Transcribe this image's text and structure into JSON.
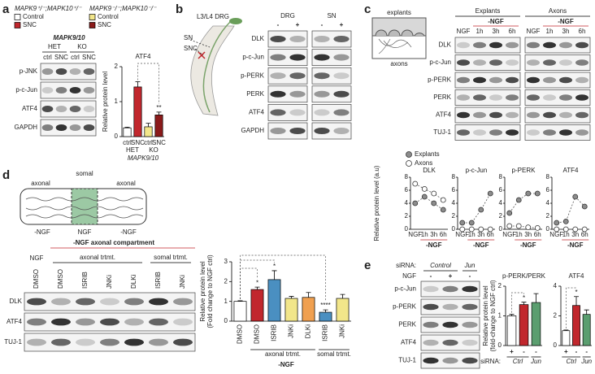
{
  "panel_labels": [
    "a",
    "b",
    "c",
    "d",
    "e"
  ],
  "panel_a": {
    "legend": [
      {
        "genotype": "MAPK9⁺/⁻;MAPK10⁺/⁻",
        "items": [
          {
            "label": "Control",
            "color": "#ffffff"
          },
          {
            "label": "SNC",
            "color": "#c1272d"
          }
        ]
      },
      {
        "genotype": "MAPK9⁻/⁻;MAPK10⁻/⁻",
        "items": [
          {
            "label": "Control",
            "color": "#f2e68a"
          },
          {
            "label": "SNC",
            "color": "#8b1a1a"
          }
        ]
      }
    ],
    "blot": {
      "title": "MAPK9/10",
      "groups": [
        "HET",
        "KO"
      ],
      "lanes": [
        "ctrl",
        "SNC",
        "ctrl",
        "SNC"
      ],
      "rows": [
        "p-JNK",
        "p-c-Jun",
        "ATF4",
        "GAPDH"
      ]
    }
  },
  "panel_b": {
    "labels": [
      "L3/L4 DRG",
      "SN",
      "SNC"
    ],
    "blots": [
      {
        "title": "DRG",
        "lanes": [
          "-",
          "+"
        ]
      },
      {
        "title": "SN",
        "lanes": [
          "-",
          "+"
        ]
      }
    ],
    "rows": [
      "DLK",
      "p-c-Jun",
      "p-PERK",
      "PERK",
      "ATF4",
      "GAPDH"
    ]
  },
  "panel_c": {
    "diagram": [
      "explants",
      "axons"
    ],
    "blots": [
      {
        "title": "Explants",
        "condition": "-NGF",
        "lanes": [
          "NGF",
          "1h",
          "3h",
          "6h"
        ]
      },
      {
        "title": "Axons",
        "condition": "-NGF",
        "lanes": [
          "NGF",
          "1h",
          "3h",
          "6h"
        ]
      }
    ],
    "rows": [
      "DLK",
      "p-c-Jun",
      "p-PERK",
      "PERK",
      "ATF4",
      "TUJ-1"
    ]
  },
  "panel_d": {
    "diagram": {
      "top": "somal",
      "sides": [
        "axonal",
        "axonal"
      ],
      "conditions": [
        "-NGF",
        "NGF",
        "-NGF"
      ]
    },
    "blot": {
      "title": "-NGF axonal compartment",
      "control": "NGF",
      "groups": [
        "axonal trtmt.",
        "somal trtmt."
      ],
      "lanes": [
        "DMSO",
        "DMSO",
        "ISRIB",
        "JNKi",
        "DLKi",
        "ISRIB",
        "JNKi"
      ],
      "rows": [
        "DLK",
        "ATF4",
        "TUJ-1"
      ]
    }
  },
  "panel_e": {
    "sirna_label": "siRNA:",
    "sirna": [
      "Control",
      "Jun"
    ],
    "ngf_label": "NGF",
    "lanes": [
      "-",
      "+",
      "-"
    ],
    "rows": [
      "p-c-Jun",
      "p-PERK",
      "PERK",
      "ATF4",
      "TUJ-1"
    ]
  },
  "chart_data": [
    {
      "type": "bar",
      "title": "ATF4",
      "y_label": [
        "Relative protein level"
      ],
      "categories": [
        "ctrl",
        "SNC",
        "ctrl",
        "SNC"
      ],
      "values": [
        0.25,
        1.42,
        0.28,
        0.62
      ],
      "errors": [
        0.02,
        0.15,
        0.1,
        0.08
      ],
      "annotations": [
        null,
        null,
        null,
        "**"
      ],
      "colors": [
        "#ffffff",
        "#c1272d",
        "#f2e68a",
        "#8b1a1a"
      ],
      "groups": [
        "HET",
        "KO"
      ],
      "x_label": "MAPK9/10",
      "ylim": [
        0,
        2
      ],
      "yticks": [
        0,
        1,
        2
      ]
    },
    {
      "type": "line",
      "title": "DLK",
      "y_label": "Relative protein level (a.u)",
      "categories": [
        "NGF",
        "1h",
        "3h",
        "6h"
      ],
      "x_label": "-NGF",
      "series": [
        {
          "name": "Explants",
          "color": "#8c8c8c",
          "values": [
            4,
            5,
            4,
            3
          ]
        },
        {
          "name": "Axons",
          "color": "#ffffff",
          "values": [
            7,
            6.2,
            5.5,
            4.5
          ]
        }
      ],
      "ylim": [
        0,
        8
      ],
      "yticks": [
        0,
        2,
        4,
        6,
        8
      ]
    },
    {
      "type": "line",
      "title": "p-c-Jun",
      "categories": [
        "NGF",
        "1h",
        "3h",
        "6h"
      ],
      "x_label": "-NGF",
      "series": [
        {
          "color": "#8c8c8c",
          "values": [
            1,
            1,
            3,
            5.5
          ]
        },
        {
          "color": "#ffffff",
          "values": [
            0,
            0,
            0,
            0
          ]
        }
      ],
      "ylim": [
        0,
        8
      ],
      "yticks": [
        0,
        2,
        4,
        6,
        8
      ]
    },
    {
      "type": "line",
      "title": "p-PERK",
      "categories": [
        "NGF",
        "1h",
        "3h",
        "6h"
      ],
      "x_label": "-NGF",
      "series": [
        {
          "color": "#8c8c8c",
          "values": [
            2.5,
            4.5,
            5.5,
            5.5
          ]
        },
        {
          "color": "#ffffff",
          "values": [
            0.5,
            0.5,
            0.3,
            0.2
          ]
        }
      ],
      "ylim": [
        0,
        8
      ],
      "yticks": [
        0,
        2,
        4,
        6,
        8
      ]
    },
    {
      "type": "line",
      "title": "ATF4",
      "categories": [
        "NGF",
        "1h",
        "3h",
        "6h"
      ],
      "x_label": "-NGF",
      "series": [
        {
          "color": "#8c8c8c",
          "values": [
            1,
            1.2,
            5,
            3.5
          ]
        },
        {
          "color": "#ffffff",
          "values": [
            0,
            0,
            0,
            0
          ]
        }
      ],
      "ylim": [
        0,
        8
      ],
      "yticks": [
        0,
        2,
        4,
        6,
        8
      ]
    },
    {
      "type": "bar",
      "y_label": [
        "Relative protein level",
        "(Fold change to NGF ctrl)"
      ],
      "categories": [
        "DMSO",
        "DMSO",
        "ISRIB",
        "JNKi",
        "DLKi",
        "ISRIB",
        "JNKi"
      ],
      "values": [
        1,
        1.6,
        2.1,
        1.15,
        1.2,
        0.45,
        1.15
      ],
      "errors": [
        0.03,
        0.12,
        0.45,
        0.1,
        0.25,
        0.12,
        0.2
      ],
      "annotations": [
        null,
        "*",
        "*",
        null,
        null,
        "****",
        null
      ],
      "colors": [
        "#ffffff",
        "#c1272d",
        "#4a8fc1",
        "#f2e68a",
        "#f0a050",
        "#4a8fc1",
        "#f2e68a"
      ],
      "groups": [
        "axonal trtmt.",
        "somal trtmt."
      ],
      "x_label": "-NGF",
      "ylim": [
        0,
        3
      ],
      "yticks": [
        0,
        1,
        2,
        3
      ]
    },
    {
      "type": "bar",
      "title": "p-PERK/PERK",
      "y_label": [
        "Relative protein level",
        "(fold-change to NGF ctrl)"
      ],
      "categories": [
        "+",
        "-",
        "-"
      ],
      "values": [
        1,
        1.38,
        1.45
      ],
      "errors": [
        0.05,
        0.08,
        0.3
      ],
      "annotations": [
        null,
        "*",
        null
      ],
      "colors": [
        "#ffffff",
        "#c1272d",
        "#5a9e6f"
      ],
      "sirna_label": "siRNA:",
      "sirna": [
        "Ctrl",
        "Jun"
      ],
      "ylim": [
        0,
        2
      ],
      "yticks": [
        0,
        1,
        2
      ]
    },
    {
      "type": "bar",
      "title": "ATF4",
      "categories": [
        "+",
        "-",
        "-"
      ],
      "values": [
        1,
        2.7,
        2.1
      ],
      "errors": [
        0.05,
        0.6,
        0.3
      ],
      "annotations": [
        null,
        "*",
        null
      ],
      "colors": [
        "#ffffff",
        "#c1272d",
        "#5a9e6f"
      ],
      "sirna": [
        "Ctrl",
        "Jun"
      ],
      "ylim": [
        0,
        4
      ],
      "yticks": [
        0,
        2,
        4
      ]
    }
  ]
}
